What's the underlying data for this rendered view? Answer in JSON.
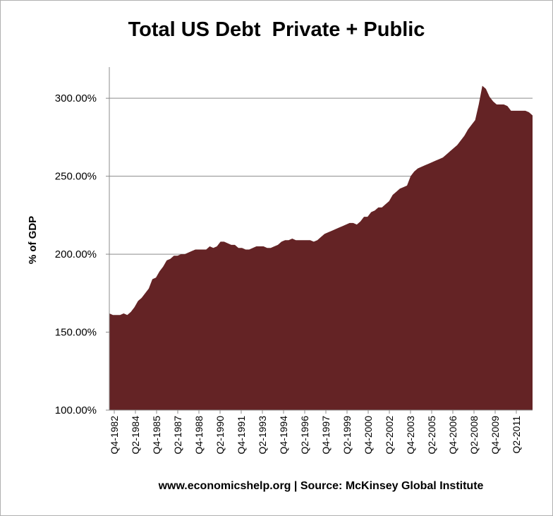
{
  "chart_data": {
    "type": "area",
    "title": "Total US Debt  Private + Public",
    "xlabel": "",
    "ylabel": "% of GDP",
    "footer": "www.economicshelp.org | Source: McKinsey Global Institute",
    "ylim": [
      100,
      320
    ],
    "y_ticks": [
      "100.00%",
      "150.00%",
      "200.00%",
      "250.00%",
      "300.00%"
    ],
    "y_tick_values": [
      100,
      150,
      200,
      250,
      300
    ],
    "x_tick_labels": [
      "Q4-1982",
      "Q2-1984",
      "Q4-1985",
      "Q2-1987",
      "Q4-1988",
      "Q2-1990",
      "Q4-1991",
      "Q2-1993",
      "Q4-1994",
      "Q2-1996",
      "Q4-1997",
      "Q2-1999",
      "Q4-2000",
      "Q2-2002",
      "Q4-2003",
      "Q2-2005",
      "Q4-2006",
      "Q2-2008",
      "Q4-2009",
      "Q2-2011"
    ],
    "grid": true,
    "fill_color": "#642325",
    "series": [
      {
        "x": [
          "Q4-1982",
          "Q1-1983",
          "Q2-1983",
          "Q3-1983",
          "Q4-1983",
          "Q1-1984",
          "Q2-1984",
          "Q3-1984",
          "Q4-1984",
          "Q1-1985",
          "Q2-1985",
          "Q3-1985",
          "Q4-1985",
          "Q1-1986",
          "Q2-1986",
          "Q3-1986",
          "Q4-1986",
          "Q1-1987",
          "Q2-1987",
          "Q3-1987",
          "Q4-1987",
          "Q1-1988",
          "Q2-1988",
          "Q3-1988",
          "Q4-1988",
          "Q1-1989",
          "Q2-1989",
          "Q3-1989",
          "Q4-1989",
          "Q1-1990",
          "Q2-1990",
          "Q3-1990",
          "Q4-1990",
          "Q1-1991",
          "Q2-1991",
          "Q3-1991",
          "Q4-1991",
          "Q1-1992",
          "Q2-1992",
          "Q3-1992",
          "Q4-1992",
          "Q1-1993",
          "Q2-1993",
          "Q3-1993",
          "Q4-1993",
          "Q1-1994",
          "Q2-1994",
          "Q3-1994",
          "Q4-1994",
          "Q1-1995",
          "Q2-1995",
          "Q3-1995",
          "Q4-1995",
          "Q1-1996",
          "Q2-1996",
          "Q3-1996",
          "Q4-1996",
          "Q1-1997",
          "Q2-1997",
          "Q3-1997",
          "Q4-1997",
          "Q1-1998",
          "Q2-1998",
          "Q3-1998",
          "Q4-1998",
          "Q1-1999",
          "Q2-1999",
          "Q3-1999",
          "Q4-1999",
          "Q1-2000",
          "Q2-2000",
          "Q3-2000",
          "Q4-2000",
          "Q1-2001",
          "Q2-2001",
          "Q3-2001",
          "Q4-2001",
          "Q1-2002",
          "Q2-2002",
          "Q3-2002",
          "Q4-2002",
          "Q1-2003",
          "Q2-2003",
          "Q3-2003",
          "Q4-2003",
          "Q1-2004",
          "Q2-2004",
          "Q3-2004",
          "Q4-2004",
          "Q1-2005",
          "Q2-2005",
          "Q3-2005",
          "Q4-2005",
          "Q1-2006",
          "Q2-2006",
          "Q3-2006",
          "Q4-2006",
          "Q1-2007",
          "Q2-2007",
          "Q3-2007",
          "Q4-2007",
          "Q1-2008",
          "Q2-2008",
          "Q3-2008",
          "Q4-2008",
          "Q1-2009",
          "Q2-2009",
          "Q3-2009",
          "Q4-2009",
          "Q1-2010",
          "Q2-2010",
          "Q3-2010",
          "Q4-2010",
          "Q1-2011",
          "Q2-2011",
          "Q3-2011",
          "Q4-2011",
          "Q1-2012",
          "Q2-2012"
        ],
        "values": [
          162,
          161,
          161,
          161,
          162,
          161,
          163,
          166,
          170,
          172,
          175,
          178,
          184,
          185,
          189,
          192,
          196,
          197,
          199,
          199,
          200,
          200,
          201,
          202,
          203,
          203,
          203,
          203,
          205,
          204,
          205,
          208,
          208,
          207,
          206,
          206,
          204,
          204,
          203,
          203,
          204,
          205,
          205,
          205,
          204,
          204,
          205,
          206,
          208,
          209,
          209,
          210,
          209,
          209,
          209,
          209,
          209,
          208,
          209,
          211,
          213,
          214,
          215,
          216,
          217,
          218,
          219,
          220,
          220,
          219,
          221,
          224,
          224,
          227,
          228,
          230,
          230,
          232,
          234,
          238,
          240,
          242,
          243,
          244,
          250,
          253,
          255,
          256,
          257,
          258,
          259,
          260,
          261,
          262,
          264,
          266,
          268,
          270,
          273,
          276,
          280,
          283,
          286,
          296,
          308,
          306,
          301,
          298,
          296,
          296,
          296,
          295,
          292,
          292,
          292,
          292,
          292,
          291,
          289
        ]
      }
    ]
  }
}
